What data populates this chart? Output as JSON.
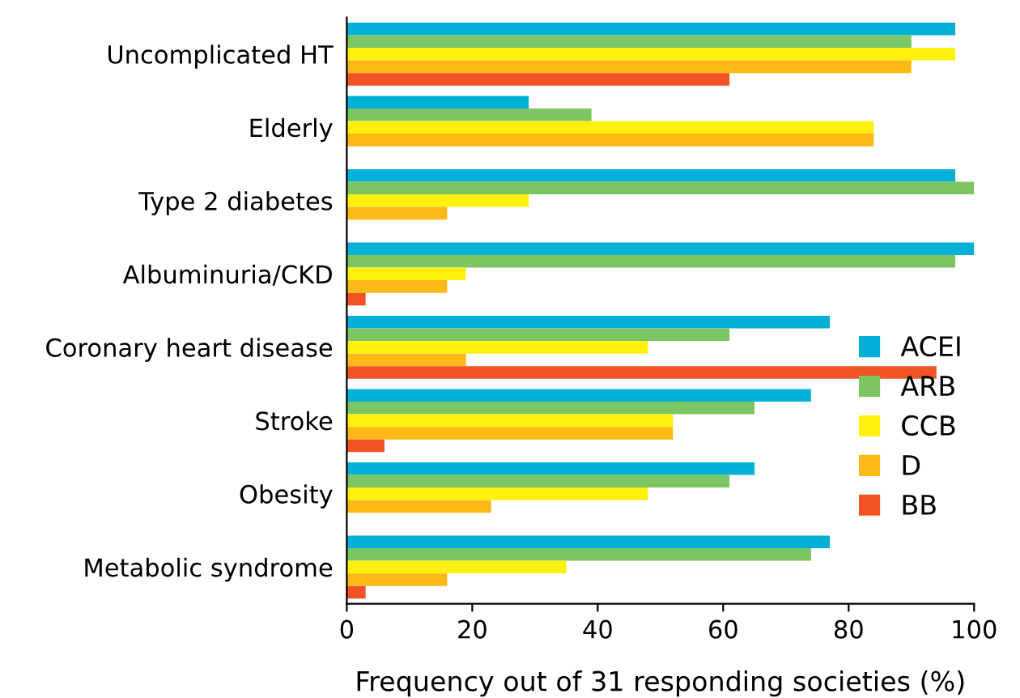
{
  "chart_data": {
    "type": "bar",
    "orientation": "horizontal",
    "xlabel": "Frequency out of 31 responding societies (%)",
    "categories": [
      "Uncomplicated HT",
      "Elderly",
      "Type 2 diabetes",
      "Albuminuria/CKD",
      "Coronary heart disease",
      "Stroke",
      "Obesity",
      "Metabolic syndrome"
    ],
    "series": [
      {
        "name": "ACEI",
        "color": "#00b0d6",
        "values": [
          97,
          29,
          97,
          100,
          77,
          74,
          65,
          77
        ]
      },
      {
        "name": "ARB",
        "color": "#7bc563",
        "values": [
          90,
          39,
          100,
          97,
          61,
          65,
          61,
          74
        ]
      },
      {
        "name": "CCB",
        "color": "#fff00f",
        "values": [
          97,
          84,
          29,
          19,
          48,
          52,
          48,
          35
        ]
      },
      {
        "name": "D",
        "color": "#fdb917",
        "values": [
          90,
          84,
          16,
          16,
          19,
          52,
          23,
          16
        ]
      },
      {
        "name": "BB",
        "color": "#f15324",
        "values": [
          61,
          null,
          null,
          3,
          94,
          6,
          null,
          3
        ]
      }
    ],
    "xlim": [
      0,
      100
    ],
    "xticks": [
      0,
      20,
      40,
      60,
      80,
      100
    ],
    "grid": false,
    "legend": "center right"
  }
}
